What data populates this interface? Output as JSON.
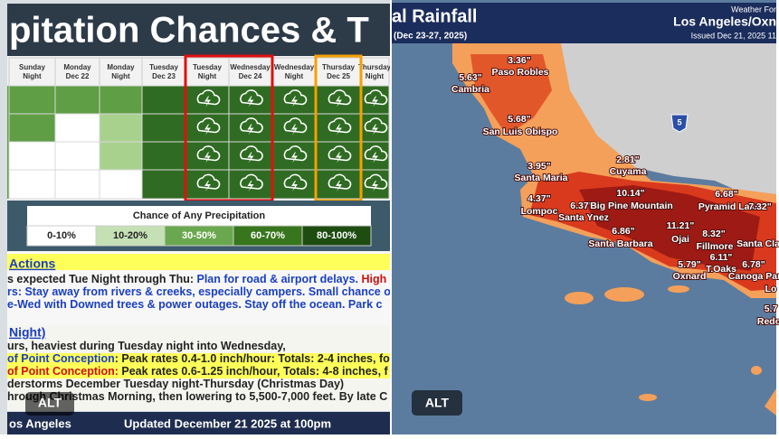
{
  "left": {
    "title": "pitation Chances & T",
    "columns": [
      {
        "line1": "Sunday",
        "line2": "Night"
      },
      {
        "line1": "Monday",
        "line2": "Dec 22"
      },
      {
        "line1": "Monday",
        "line2": "Night"
      },
      {
        "line1": "Tuesday",
        "line2": "Dec 23"
      },
      {
        "line1": "Tuesday",
        "line2": "Night"
      },
      {
        "line1": "Wednesday",
        "line2": "Dec 24"
      },
      {
        "line1": "Wednesday",
        "line2": "Night"
      },
      {
        "line1": "Thursday",
        "line2": "Dec 25"
      },
      {
        "line1": "Thursday",
        "line2": "Night"
      }
    ],
    "legend": {
      "title": "Chance of Any Precipitation",
      "items": [
        "0-10%",
        "10-20%",
        "30-50%",
        "60-70%",
        "80-100%"
      ]
    },
    "actions_heading": "Actions",
    "actions": [
      [
        "s expected Tue Night through Thu: ",
        "Plan for road & airport delays.",
        " High"
      ],
      [
        "rs: Stay away from rivers & creeks, especially campers. Small chance o"
      ],
      [
        "e-Wed with Downed trees & power outages. Stay off the ocean. Park c"
      ]
    ],
    "night_heading": "Night)",
    "details": [
      [
        "urs, heaviest during Tuesday night into Wednesday,"
      ],
      [
        "of Point Conception",
        ": Peak rates 0.4-1.0 inch/hour: Totals: 2-4 inches, fo"
      ],
      [
        "of Point Conception:",
        " Peak rates 0.6-1.25 inch/hour, Totals: 4-8 inches, f"
      ],
      [
        "derstorms December Tuesday night-Thursday (Christmas Day)"
      ],
      [
        "hrough Christmas Morning, then lowering to 5,500-7,000 feet. By late C"
      ]
    ],
    "footer": {
      "office": "os Angeles",
      "updated": "Updated December 21 2025 at 100pm"
    },
    "alt": "ALT"
  },
  "right": {
    "title": "al Rainfall",
    "dates": "(Dec 23-27, 2025)",
    "office_line1": "Weather For",
    "office_line2": "Los Angeles/Oxn",
    "issued": "Issued Dec 21, 2025 11",
    "route": "5",
    "labels": [
      "3.36\"",
      "Paso Robles",
      "5.63\"",
      "Cambria",
      "5.68\"",
      "San Luis Obispo",
      "2.81\"",
      "Cuyama",
      "3.95\"",
      "Santa Maria",
      "4.37\"",
      "Lompoc",
      "10.14\"",
      "6.37\"",
      "Big Pine Mountain",
      "Santa Ynez",
      "6.86\"",
      "Santa Barbara",
      "11.21\"",
      "Ojai",
      "6.68\"",
      "Pyramid Lake",
      "7.32\"",
      "Santa Cla",
      "8.32\"",
      "Fillmore",
      "6.11\"",
      "T.Oaks",
      "5.79\"",
      "Oxnard",
      "6.78\"",
      "Canoga Par",
      "Lo",
      "5.7",
      "Redo"
    ],
    "alt": "ALT"
  }
}
